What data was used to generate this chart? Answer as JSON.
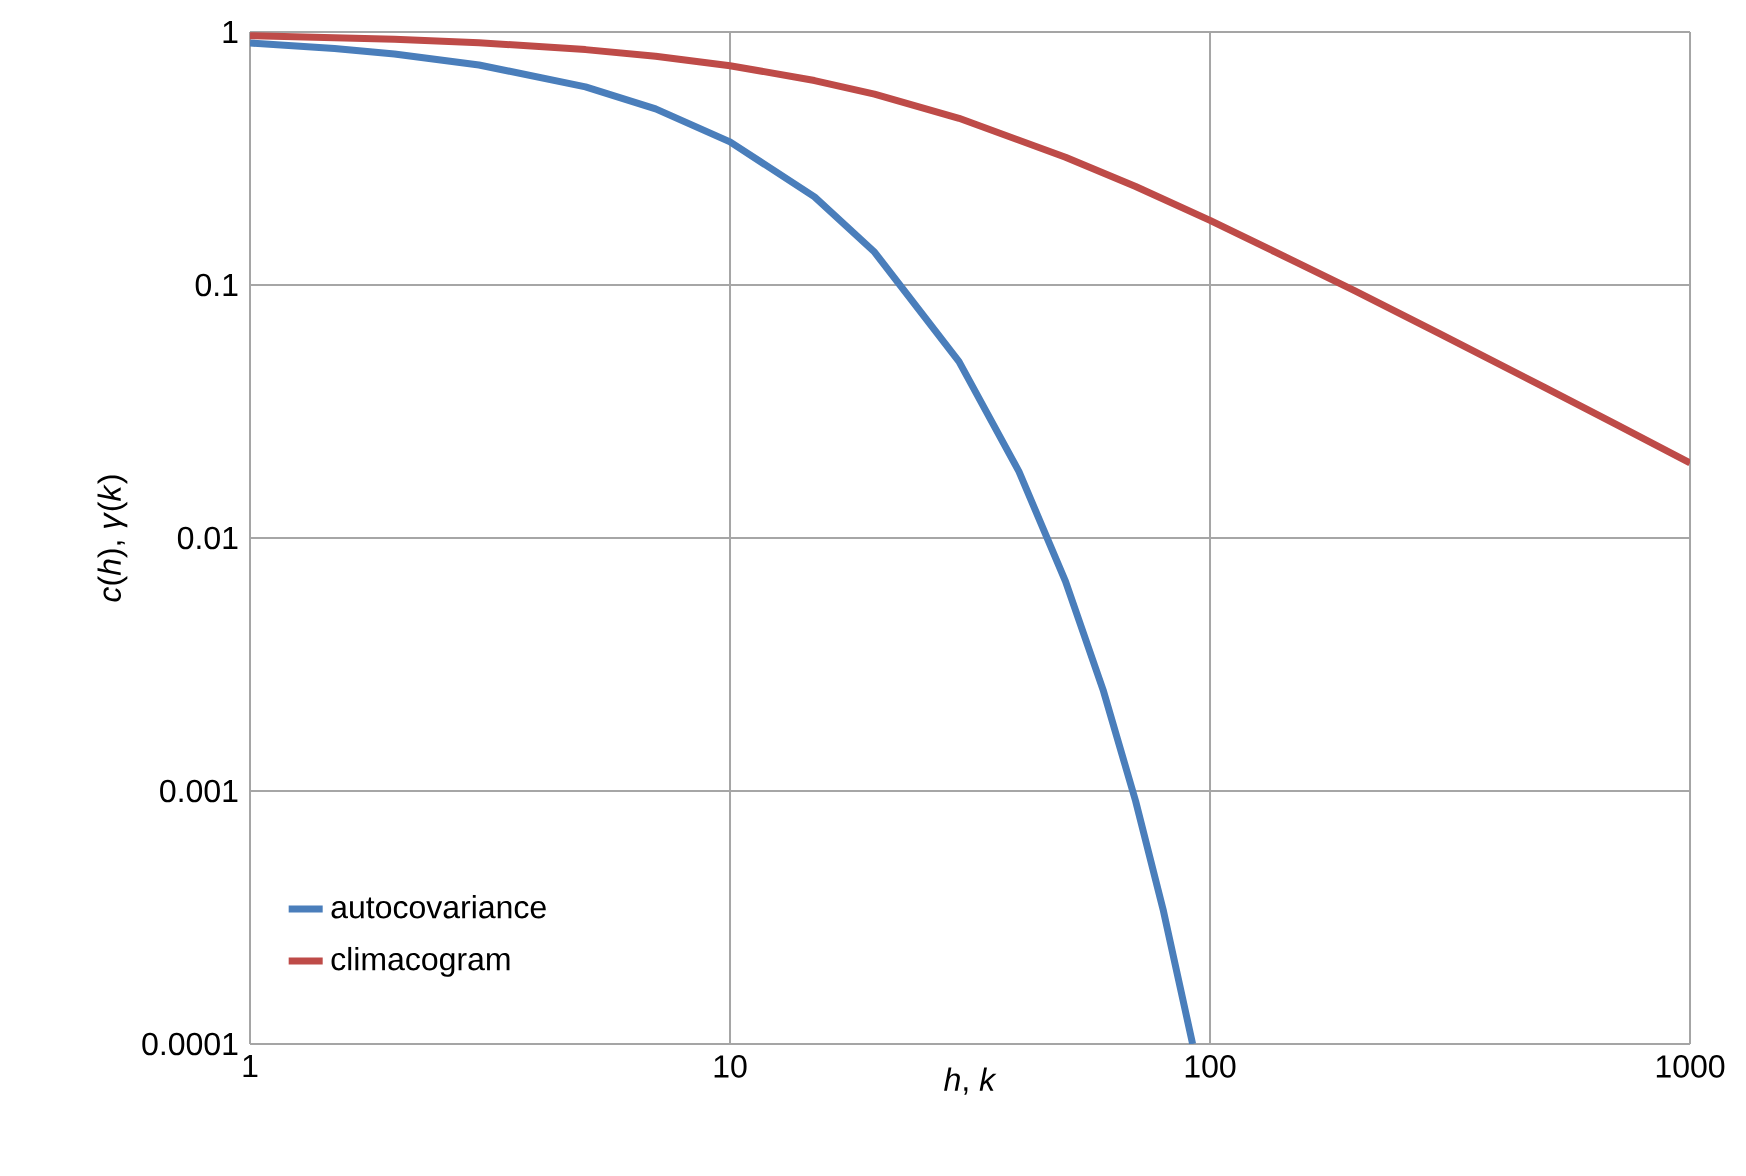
{
  "chart_data": {
    "type": "line",
    "xlabel": "*h*, *k*",
    "ylabel": "*c*(*h*), *γ*(*k*)",
    "log": "xy",
    "grid": true,
    "legend": "bottom left",
    "marker": "none",
    "line_style": "solid",
    "xlim": [
      1,
      1000
    ],
    "ylim": [
      0.0001,
      1
    ],
    "xticks": [
      1,
      10,
      100,
      1000
    ],
    "yticks": [
      0.0001,
      0.001,
      0.01,
      0.1,
      1
    ],
    "series": [
      {
        "name": "autocovariance",
        "color": "#4a7ebb",
        "x": [
          1,
          1.5,
          2,
          3,
          5,
          7,
          10,
          15,
          20,
          30,
          40,
          50,
          60,
          70,
          80,
          92
        ],
        "values": [
          0.905,
          0.861,
          0.819,
          0.741,
          0.607,
          0.497,
          0.368,
          0.223,
          0.135,
          0.0498,
          0.0183,
          0.00674,
          0.00248,
          0.000912,
          0.000335,
          0.0001
        ]
      },
      {
        "name": "climacogram",
        "color": "#be4b48",
        "x": [
          1,
          2,
          3,
          5,
          7,
          10,
          15,
          20,
          30,
          50,
          70,
          100,
          150,
          200,
          300,
          500,
          700,
          1000
        ],
        "values": [
          0.967,
          0.937,
          0.907,
          0.852,
          0.802,
          0.736,
          0.643,
          0.568,
          0.456,
          0.32,
          0.245,
          0.18,
          0.124,
          0.095,
          0.0644,
          0.0392,
          0.0282,
          0.0198
        ]
      }
    ]
  }
}
